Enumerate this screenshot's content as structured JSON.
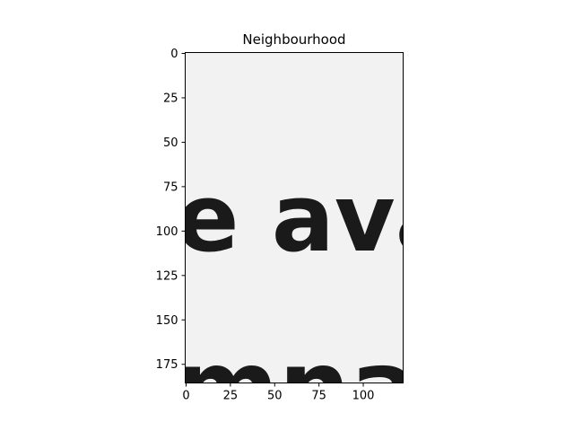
{
  "chart_data": {
    "type": "image",
    "title": "Neighbourhood",
    "xlabel": "",
    "ylabel": "",
    "xlim": [
      -0.5,
      122.5
    ],
    "ylim": [
      185.5,
      -0.5
    ],
    "xticks": [
      0,
      25,
      50,
      75,
      100
    ],
    "yticks": [
      0,
      25,
      50,
      75,
      100,
      125,
      150,
      175
    ],
    "grid": false,
    "colormap": "gray",
    "image_content": {
      "line1_text": "e ava",
      "line2_text": "mnar"
    }
  },
  "colors": {
    "background": "#f2f2f2",
    "ink": "#1a1a1a"
  }
}
